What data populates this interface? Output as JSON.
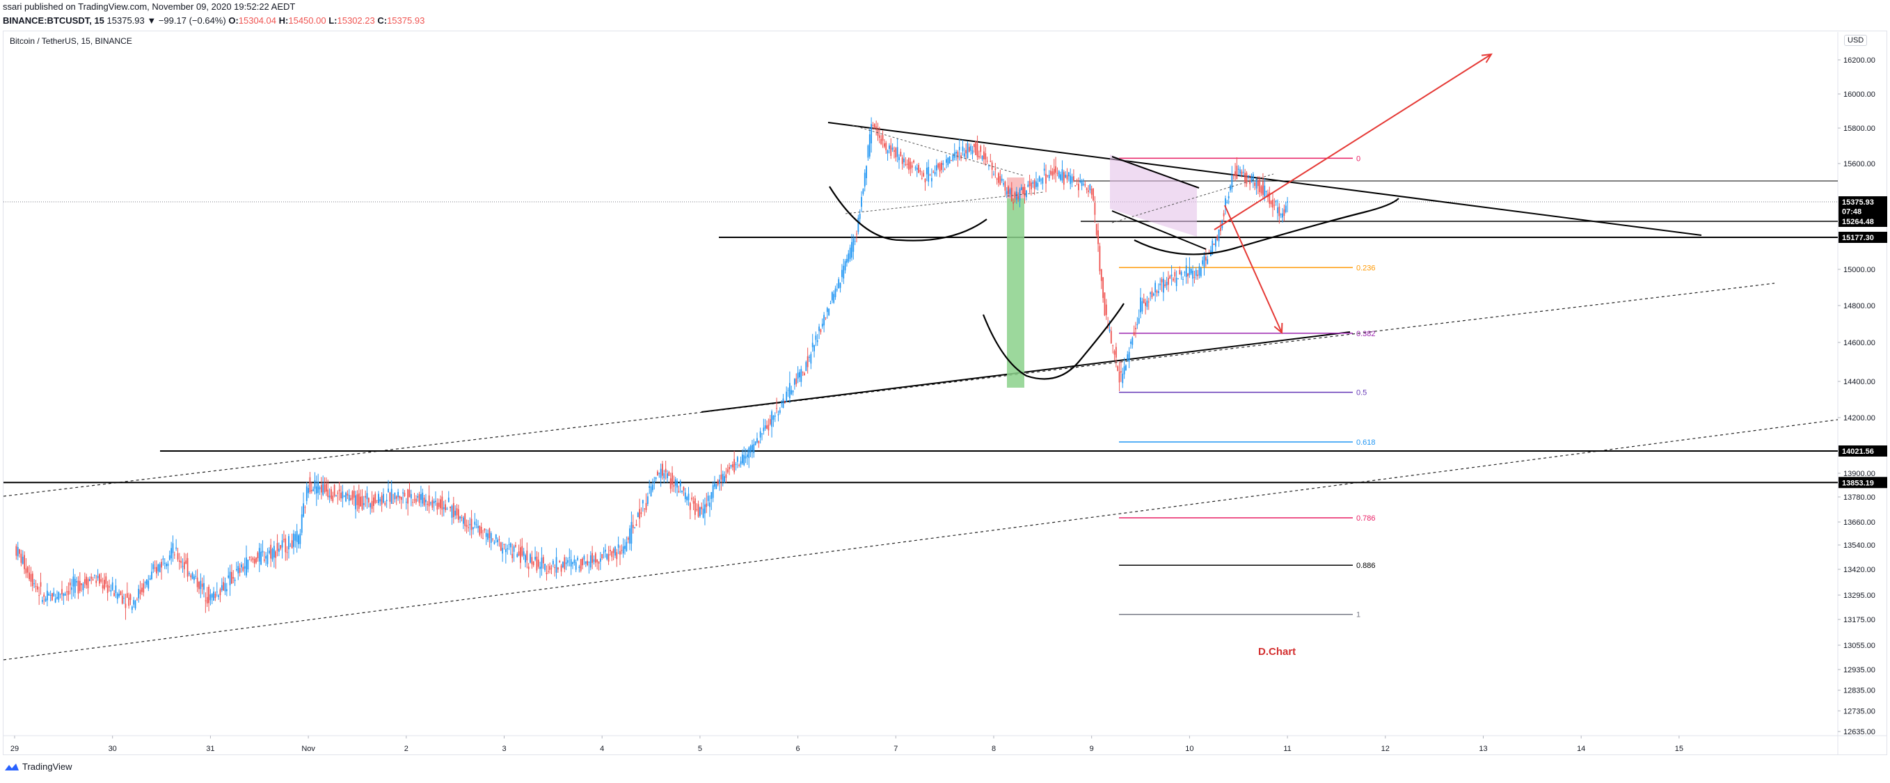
{
  "header": {
    "line1": "ssari published on TradingView.com, November 09, 2020 19:52:22 AEDT",
    "symbol_line": "BINANCE:BTCUSDT, 15",
    "change": "15375.93 ▼ −99.17 (−0.64%)",
    "o_label": "O:",
    "o_value": "15304.04",
    "h_label": "H:",
    "h_value": "15450.00",
    "l_label": "L:",
    "l_value": "15302.23",
    "c_label": "C:",
    "c_value": "15375.93"
  },
  "chart_title": "Bitcoin / TetherUS, 15, BINANCE",
  "currency": "USD",
  "footer": {
    "brand": "TradingView"
  },
  "colors": {
    "up": "#2196f3",
    "down": "#ef5350",
    "arrow": "#e53935",
    "watermark": "#d32f2f",
    "fib_0": "#e91e63",
    "fib_0236": "#ff9800",
    "fib_0382": "#9c27b0",
    "fib_05": "#673ab7",
    "fib_0618": "#2196f3",
    "fib_0786": "#e91e63",
    "fib_0886": "#000000",
    "fib_1": "#787b86"
  },
  "chart_data": {
    "type": "candlestick",
    "title": "Bitcoin / TetherUS, 15, BINANCE",
    "x_tick_labels": [
      "29",
      "30",
      "31",
      "Nov",
      "2",
      "3",
      "4",
      "5",
      "6",
      "7",
      "8",
      "9",
      "10",
      "11",
      "12",
      "13",
      "14",
      "15"
    ],
    "y_tick_labels": [
      "16200.00",
      "16000.00",
      "15800.00",
      "15600.00",
      "15000.00",
      "14800.00",
      "14600.00",
      "14400.00",
      "14200.00",
      "13900.00",
      "13780.00",
      "13660.00",
      "13540.00",
      "13420.00",
      "13295.00",
      "13175.00",
      "13055.00",
      "12935.00",
      "12835.00",
      "12735.00",
      "12635.00"
    ],
    "price_labels": [
      {
        "text": "15375.93",
        "value": 15375.93,
        "bg": "#000000"
      },
      {
        "text": "07:48",
        "value": 15322,
        "bg": "#000000"
      },
      {
        "text": "15264.48",
        "value": 15264.48,
        "bg": "#000000"
      },
      {
        "text": "15177.30",
        "value": 15177.3,
        "bg": "#000000"
      },
      {
        "text": "14021.56",
        "value": 14021.56,
        "bg": "#000000"
      },
      {
        "text": "13853.19",
        "value": 13853.19,
        "bg": "#000000"
      }
    ],
    "last_price": 15375.93,
    "horizontal_levels": [
      15264.48,
      15177.3,
      14021.56,
      13853.19,
      15375.93
    ],
    "fib_levels": [
      {
        "label": "0",
        "value": 15630
      },
      {
        "label": "0.236",
        "value": 15010
      },
      {
        "label": "0.382",
        "value": 14650
      },
      {
        "label": "0.5",
        "value": 14340
      },
      {
        "label": "0.618",
        "value": 14070
      },
      {
        "label": "0.786",
        "value": 13680
      },
      {
        "label": "0.886",
        "value": 13440
      },
      {
        "label": "1",
        "value": 13200
      }
    ],
    "price_path": [
      {
        "day": 0.0,
        "price": 13530
      },
      {
        "day": 0.3,
        "price": 13270
      },
      {
        "day": 0.8,
        "price": 13380
      },
      {
        "day": 1.2,
        "price": 13260
      },
      {
        "day": 1.6,
        "price": 13520
      },
      {
        "day": 2.0,
        "price": 13280
      },
      {
        "day": 2.4,
        "price": 13460
      },
      {
        "day": 2.9,
        "price": 13570
      },
      {
        "day": 3.0,
        "price": 13850
      },
      {
        "day": 3.5,
        "price": 13760
      },
      {
        "day": 4.0,
        "price": 13790
      },
      {
        "day": 4.4,
        "price": 13740
      },
      {
        "day": 4.9,
        "price": 13560
      },
      {
        "day": 5.4,
        "price": 13430
      },
      {
        "day": 5.8,
        "price": 13460
      },
      {
        "day": 6.2,
        "price": 13510
      },
      {
        "day": 6.6,
        "price": 13920
      },
      {
        "day": 7.0,
        "price": 13700
      },
      {
        "day": 7.2,
        "price": 13870
      },
      {
        "day": 7.5,
        "price": 14010
      },
      {
        "day": 7.8,
        "price": 14250
      },
      {
        "day": 8.1,
        "price": 14500
      },
      {
        "day": 8.4,
        "price": 14900
      },
      {
        "day": 8.6,
        "price": 15200
      },
      {
        "day": 8.75,
        "price": 15800
      },
      {
        "day": 8.9,
        "price": 15700
      },
      {
        "day": 9.3,
        "price": 15530
      },
      {
        "day": 9.8,
        "price": 15700
      },
      {
        "day": 10.2,
        "price": 15400
      },
      {
        "day": 10.6,
        "price": 15550
      },
      {
        "day": 11.0,
        "price": 15450
      },
      {
        "day": 11.15,
        "price": 14700
      },
      {
        "day": 11.3,
        "price": 14400
      },
      {
        "day": 11.5,
        "price": 14800
      },
      {
        "day": 11.8,
        "price": 14950
      },
      {
        "day": 12.1,
        "price": 14990
      },
      {
        "day": 12.3,
        "price": 15200
      },
      {
        "day": 12.45,
        "price": 15560
      },
      {
        "day": 12.7,
        "price": 15480
      },
      {
        "day": 12.95,
        "price": 15300
      },
      {
        "day": 13.0,
        "price": 15375.93
      }
    ],
    "watermark": "D.Chart"
  }
}
